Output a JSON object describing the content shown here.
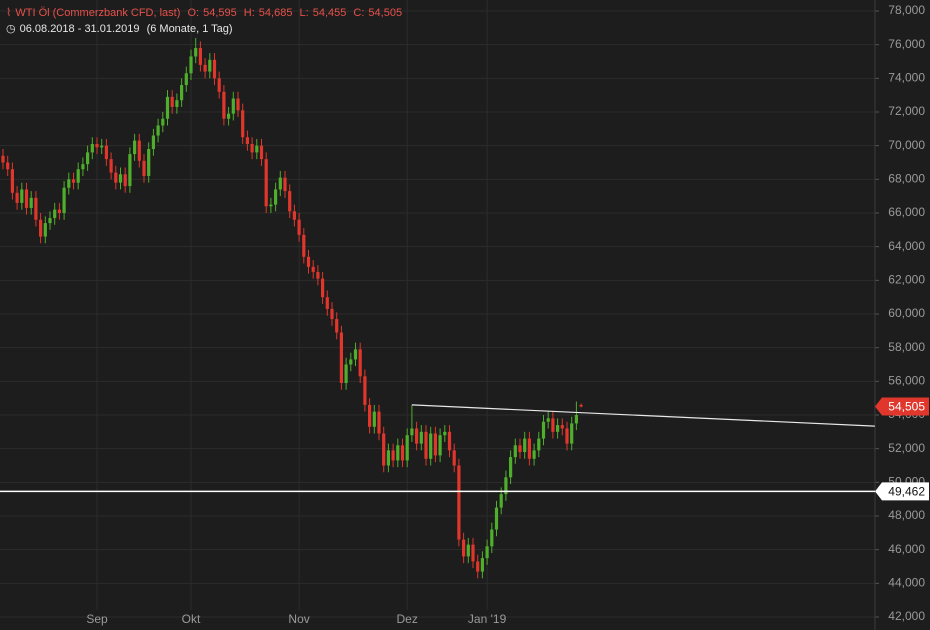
{
  "header": {
    "title": "WTI Öl (Commerzbank CFD, last)",
    "items": [
      {
        "label": "O:",
        "value": "54,595"
      },
      {
        "label": "H:",
        "value": "54,685"
      },
      {
        "label": "L:",
        "value": "54,455"
      },
      {
        "label": "C:",
        "value": "54,505"
      }
    ],
    "range": "06.08.2018 - 31.01.2019",
    "period": "(6 Monate, 1 Tag)"
  },
  "chart_data": {
    "type": "candlestick",
    "up_color": "#4fae2c",
    "down_color": "#e0362b",
    "grid": true,
    "ylim": [
      42,
      78
    ],
    "yticks": [
      {
        "value": 42,
        "label": "42,000"
      },
      {
        "value": 44,
        "label": "44,000"
      },
      {
        "value": 46,
        "label": "46,000"
      },
      {
        "value": 48,
        "label": "48,000"
      },
      {
        "value": 50,
        "label": "50,000"
      },
      {
        "value": 52,
        "label": "52,000"
      },
      {
        "value": 54,
        "label": "54,000"
      },
      {
        "value": 56,
        "label": "56,000"
      },
      {
        "value": 58,
        "label": "58,000"
      },
      {
        "value": 60,
        "label": "60,000"
      },
      {
        "value": 62,
        "label": "62,000"
      },
      {
        "value": 64,
        "label": "64,000"
      },
      {
        "value": 66,
        "label": "66,000"
      },
      {
        "value": 68,
        "label": "68,000"
      },
      {
        "value": 70,
        "label": "70,000"
      },
      {
        "value": 72,
        "label": "72,000"
      },
      {
        "value": 74,
        "label": "74,000"
      },
      {
        "value": 76,
        "label": "76,000"
      },
      {
        "value": 78,
        "label": "78,000"
      }
    ],
    "categories": [
      null,
      null,
      null,
      null,
      null,
      null,
      null,
      null,
      null,
      null,
      null,
      null,
      null,
      null,
      null,
      null,
      null,
      null,
      null,
      null,
      "Sep",
      null,
      null,
      null,
      null,
      null,
      null,
      null,
      null,
      null,
      null,
      null,
      null,
      null,
      null,
      null,
      null,
      null,
      null,
      null,
      "Okt",
      null,
      null,
      null,
      null,
      null,
      null,
      null,
      null,
      null,
      null,
      null,
      null,
      null,
      null,
      null,
      null,
      null,
      null,
      null,
      null,
      null,
      null,
      "Nov",
      null,
      null,
      null,
      null,
      null,
      null,
      null,
      null,
      null,
      null,
      null,
      null,
      null,
      null,
      null,
      null,
      null,
      null,
      null,
      null,
      null,
      null,
      "Dez",
      null,
      null,
      null,
      null,
      null,
      null,
      null,
      null,
      null,
      null,
      null,
      null,
      null,
      null,
      null,
      null,
      "Jan '19",
      null,
      null,
      null,
      null,
      null,
      null,
      null,
      null,
      null,
      null,
      null,
      null,
      null,
      null,
      null,
      null,
      null,
      null,
      null,
      null
    ],
    "open": [
      69.4,
      69.0,
      68.6,
      67.2,
      66.6,
      67.4,
      66.3,
      66.9,
      65.6,
      64.6,
      65.4,
      65.7,
      66.2,
      66.0,
      67.5,
      68.0,
      67.8,
      68.6,
      68.9,
      69.6,
      70.1,
      69.9,
      70.0,
      69.2,
      68.4,
      67.8,
      68.3,
      67.6,
      69.5,
      70.3,
      69.1,
      68.2,
      69.8,
      70.6,
      71.2,
      71.6,
      72.9,
      72.3,
      72.7,
      73.6,
      74.3,
      75.3,
      75.8,
      74.8,
      74.4,
      75.1,
      74.0,
      73.2,
      71.6,
      71.9,
      72.8,
      72.1,
      70.5,
      70.1,
      69.6,
      70.0,
      69.2,
      66.4,
      66.5,
      67.4,
      68.1,
      67.3,
      66.1,
      65.6,
      64.7,
      63.4,
      62.8,
      62.5,
      62.1,
      61.0,
      60.3,
      59.7,
      58.9,
      55.9,
      57.0,
      57.3,
      57.9,
      56.3,
      54.6,
      53.3,
      54.2,
      52.9,
      51.0,
      51.9,
      51.3,
      52.2,
      51.3,
      52.8,
      53.2,
      52.3,
      53.0,
      51.4,
      52.9,
      51.6,
      52.8,
      53.0,
      51.9,
      51.0,
      46.6,
      45.6,
      46.3,
      45.3,
      44.7,
      45.5,
      46.2,
      47.2,
      48.5,
      49.3,
      50.3,
      51.5,
      52.2,
      51.8,
      52.6,
      51.4,
      51.9,
      52.6,
      53.6,
      53.8,
      53.0,
      53.4,
      53.2,
      52.3,
      53.5,
      54.595
    ],
    "high": [
      69.8,
      69.4,
      69.0,
      67.6,
      67.8,
      67.8,
      67.3,
      67.3,
      66.0,
      65.8,
      66.1,
      66.6,
      66.6,
      67.9,
      68.4,
      68.4,
      69.0,
      69.3,
      70.0,
      70.5,
      70.5,
      70.4,
      70.4,
      69.6,
      68.8,
      68.7,
      68.7,
      69.9,
      70.7,
      70.7,
      69.5,
      70.2,
      71.0,
      71.6,
      72.0,
      73.3,
      73.3,
      73.1,
      74.0,
      74.7,
      75.7,
      76.4,
      76.2,
      75.2,
      75.5,
      75.5,
      74.4,
      73.6,
      72.3,
      73.2,
      73.2,
      72.5,
      70.9,
      70.5,
      70.4,
      70.4,
      69.6,
      66.9,
      67.8,
      68.5,
      68.5,
      67.7,
      66.5,
      66.0,
      65.1,
      63.8,
      63.2,
      62.9,
      62.5,
      61.4,
      60.7,
      60.1,
      59.3,
      57.4,
      57.7,
      58.3,
      58.3,
      56.7,
      55.0,
      54.6,
      54.6,
      53.3,
      52.3,
      52.3,
      52.6,
      52.6,
      53.2,
      54.6,
      53.6,
      53.4,
      53.4,
      53.3,
      53.3,
      53.2,
      53.4,
      53.4,
      52.3,
      51.4,
      47.0,
      46.7,
      46.7,
      45.7,
      45.9,
      46.6,
      47.6,
      48.9,
      49.7,
      50.7,
      51.9,
      52.6,
      52.6,
      53.0,
      53.0,
      52.3,
      53.0,
      54.0,
      54.2,
      54.2,
      53.8,
      53.8,
      53.6,
      53.9,
      54.8,
      54.685
    ],
    "low": [
      68.6,
      68.2,
      66.8,
      66.2,
      66.2,
      65.9,
      65.9,
      65.2,
      64.2,
      64.2,
      65.0,
      65.3,
      65.6,
      65.6,
      67.1,
      67.4,
      67.4,
      68.2,
      68.5,
      69.2,
      69.5,
      69.5,
      68.8,
      68.0,
      67.4,
      67.4,
      67.2,
      67.2,
      69.1,
      68.7,
      67.8,
      67.8,
      69.4,
      70.2,
      70.8,
      71.2,
      71.9,
      71.9,
      72.3,
      73.2,
      73.9,
      74.9,
      74.4,
      74.0,
      74.0,
      73.6,
      72.8,
      71.2,
      71.2,
      71.5,
      71.7,
      70.1,
      69.7,
      69.2,
      69.2,
      68.8,
      66.0,
      66.0,
      66.1,
      67.0,
      66.9,
      65.7,
      65.2,
      64.3,
      63.0,
      62.4,
      62.1,
      61.7,
      60.6,
      59.9,
      59.3,
      58.5,
      55.5,
      55.5,
      56.6,
      56.9,
      55.9,
      54.2,
      52.9,
      52.9,
      52.5,
      50.6,
      50.6,
      50.9,
      50.9,
      50.9,
      50.9,
      52.4,
      51.9,
      51.9,
      51.0,
      51.0,
      51.2,
      51.2,
      52.4,
      51.5,
      50.6,
      46.2,
      45.2,
      45.2,
      44.9,
      44.3,
      44.3,
      45.1,
      45.8,
      46.8,
      48.1,
      48.9,
      49.9,
      51.1,
      51.4,
      51.4,
      51.0,
      51.0,
      51.5,
      52.2,
      53.2,
      52.6,
      52.6,
      52.8,
      51.9,
      51.9,
      53.1,
      54.455
    ],
    "close": [
      69.0,
      68.6,
      67.2,
      66.6,
      67.4,
      66.3,
      66.9,
      65.6,
      64.6,
      65.4,
      65.7,
      66.2,
      66.0,
      67.5,
      68.0,
      67.8,
      68.6,
      68.9,
      69.6,
      70.1,
      69.9,
      70.0,
      69.2,
      68.4,
      67.8,
      68.3,
      67.6,
      69.5,
      70.3,
      69.1,
      68.2,
      69.8,
      70.6,
      71.2,
      71.6,
      72.9,
      72.3,
      72.7,
      73.6,
      74.3,
      75.3,
      75.8,
      74.8,
      74.4,
      75.1,
      74.0,
      73.2,
      71.6,
      71.9,
      72.8,
      72.1,
      70.5,
      70.1,
      69.6,
      70.0,
      69.2,
      66.4,
      66.5,
      67.4,
      68.1,
      67.3,
      66.1,
      65.6,
      64.7,
      63.4,
      62.8,
      62.5,
      62.1,
      61.0,
      60.3,
      59.7,
      58.9,
      55.9,
      57.0,
      57.3,
      57.9,
      56.3,
      54.6,
      53.3,
      54.2,
      52.9,
      51.0,
      51.9,
      51.3,
      52.2,
      51.3,
      52.8,
      53.2,
      52.3,
      53.0,
      51.4,
      52.9,
      51.6,
      52.8,
      53.0,
      51.9,
      51.0,
      46.6,
      45.6,
      46.3,
      45.3,
      44.7,
      45.5,
      46.2,
      47.2,
      48.5,
      49.3,
      50.3,
      51.5,
      52.2,
      51.8,
      52.6,
      51.4,
      51.9,
      52.6,
      53.6,
      53.8,
      53.0,
      53.4,
      53.2,
      52.3,
      53.5,
      54.0,
      54.505
    ],
    "trendline": {
      "x": [
        87,
        185.5
      ],
      "y": [
        54.6,
        53.34
      ]
    },
    "hline": {
      "value": 49.462,
      "label": "49,462"
    },
    "last_price": {
      "value": 54.505,
      "label": "54,505"
    }
  }
}
